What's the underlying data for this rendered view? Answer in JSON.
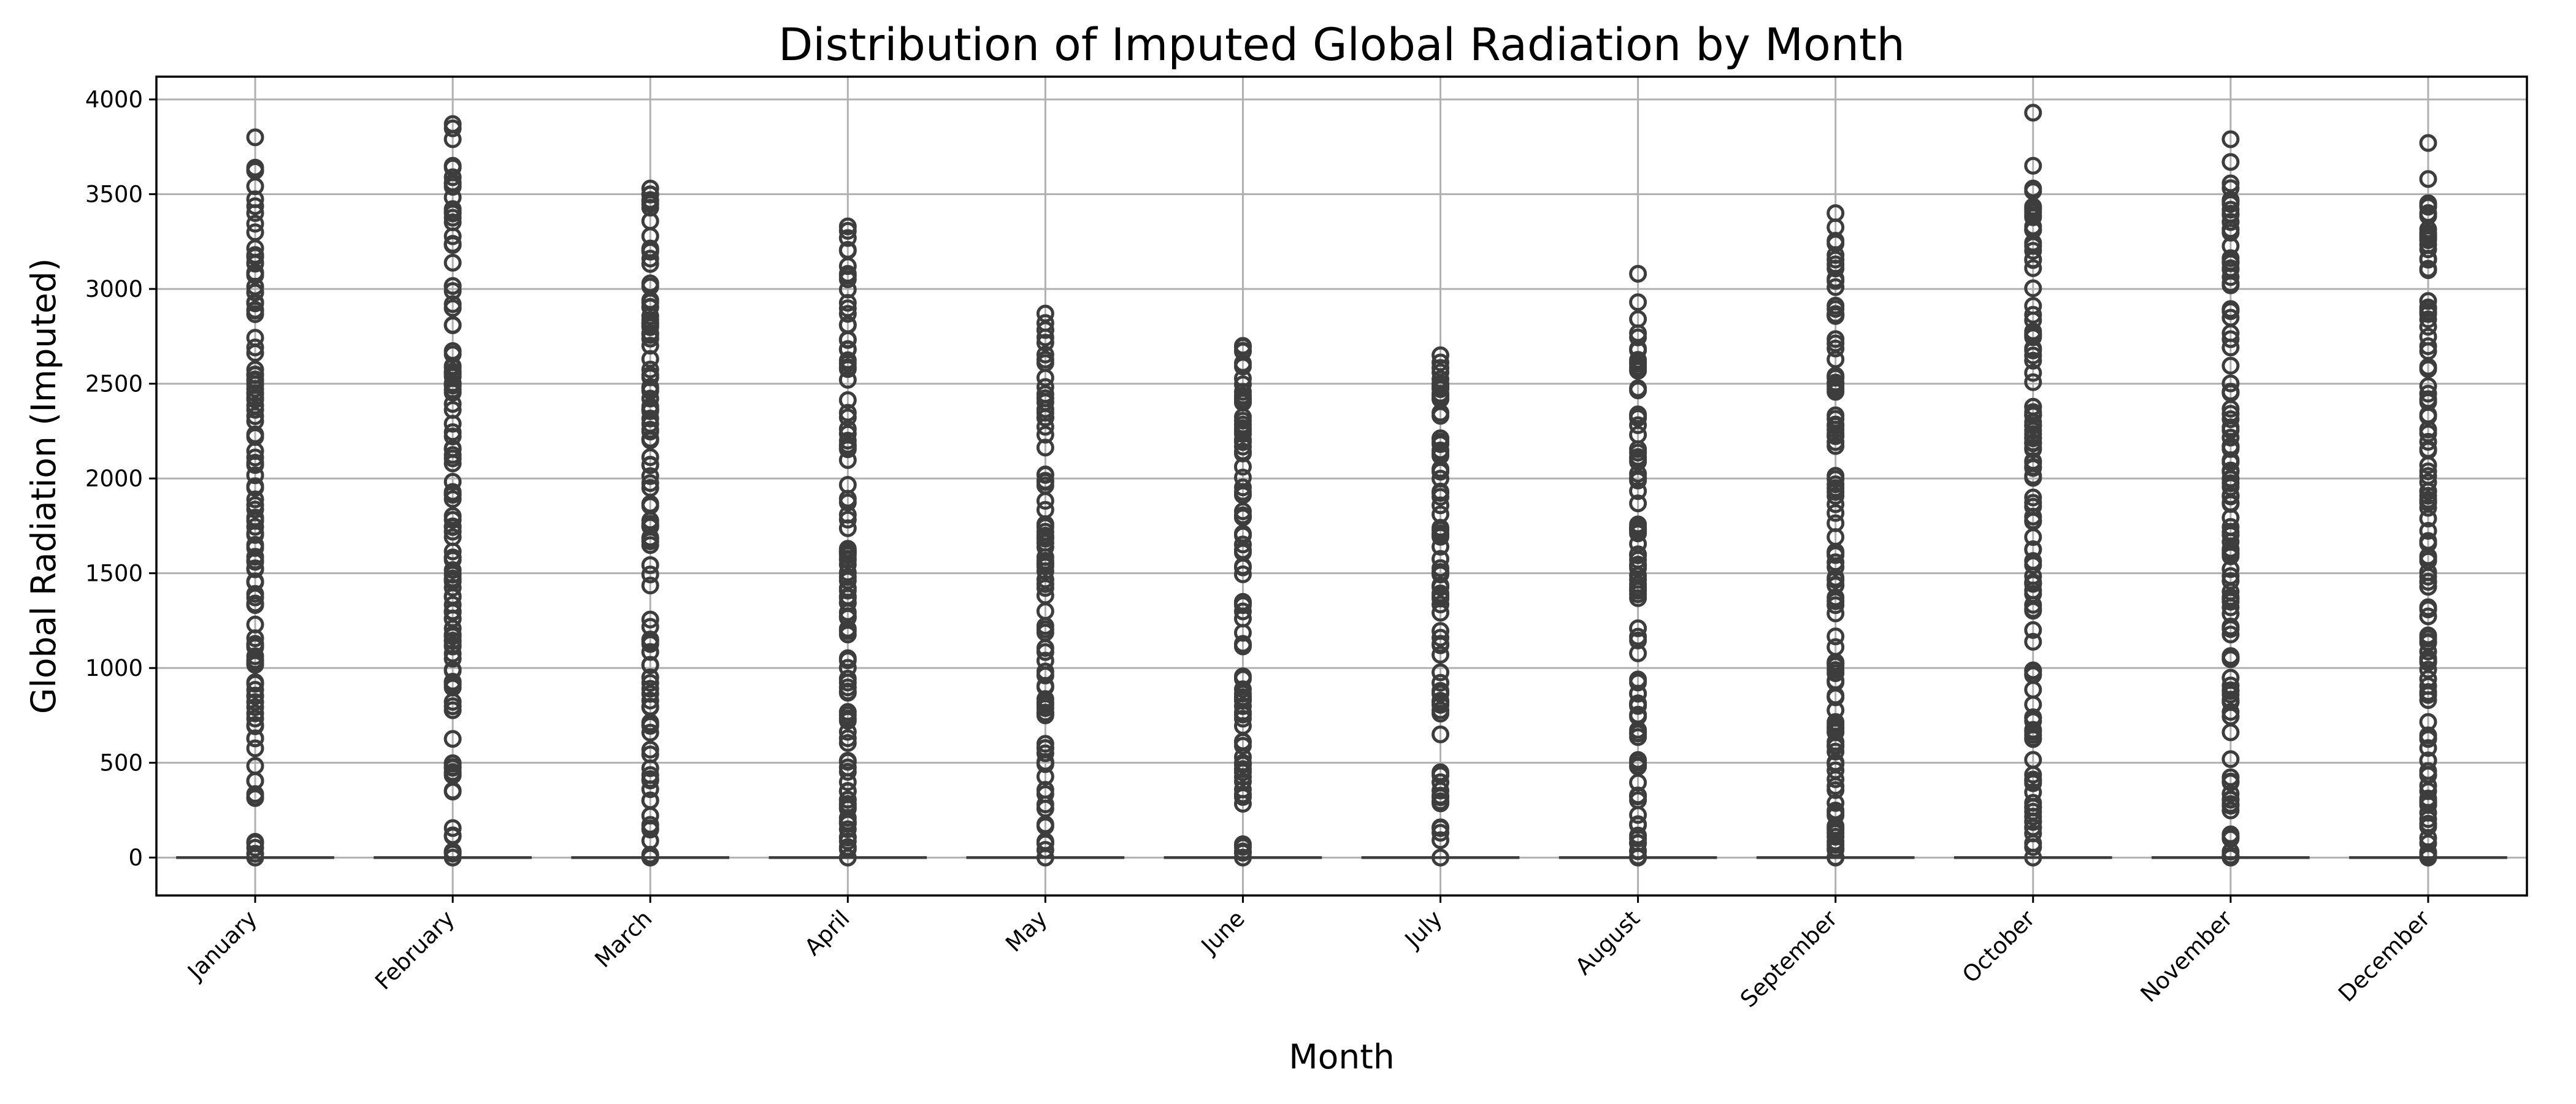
{
  "chart_data": {
    "type": "box",
    "title": "Distribution of Imputed Global Radiation by Month",
    "xlabel": "Month",
    "ylabel": "Global Radiation (Imputed)",
    "ylim": [
      -200,
      4120
    ],
    "yticks": [
      0,
      500,
      1000,
      1500,
      2000,
      2500,
      3000,
      3500,
      4000
    ],
    "grid": true,
    "legend": "none",
    "box_color": "#3d3d3d",
    "categories": [
      "January",
      "February",
      "March",
      "April",
      "May",
      "June",
      "July",
      "August",
      "September",
      "October",
      "November",
      "December"
    ],
    "medians": [
      0,
      0,
      0,
      0,
      0,
      0,
      0,
      0,
      0,
      0,
      0,
      0
    ],
    "q1": [
      0,
      0,
      0,
      0,
      0,
      0,
      0,
      0,
      0,
      0,
      0,
      0
    ],
    "q3": [
      0,
      0,
      0,
      0,
      0,
      0,
      0,
      0,
      0,
      0,
      0,
      0
    ],
    "flier_max": [
      3800,
      3870,
      3530,
      3330,
      2870,
      2700,
      2650,
      3080,
      3400,
      3930,
      3790,
      3770
    ],
    "flier_ranges": [
      [
        [
          0,
          3640
        ],
        [
          3800,
          3800
        ]
      ],
      [
        [
          0,
          3650
        ],
        [
          3790,
          3870
        ]
      ],
      [
        [
          0,
          3530
        ]
      ],
      [
        [
          0,
          3330
        ]
      ],
      [
        [
          0,
          600
        ],
        [
          750,
          2870
        ]
      ],
      [
        [
          0,
          2700
        ]
      ],
      [
        [
          0,
          450
        ],
        [
          650,
          2650
        ]
      ],
      [
        [
          0,
          2930
        ],
        [
          3080,
          3080
        ]
      ],
      [
        [
          0,
          3400
        ]
      ],
      [
        [
          0,
          3530
        ],
        [
          3650,
          3650
        ],
        [
          3930,
          3930
        ]
      ],
      [
        [
          0,
          3670
        ],
        [
          3790,
          3790
        ]
      ],
      [
        [
          0,
          3580
        ],
        [
          3770,
          3770
        ]
      ]
    ]
  }
}
